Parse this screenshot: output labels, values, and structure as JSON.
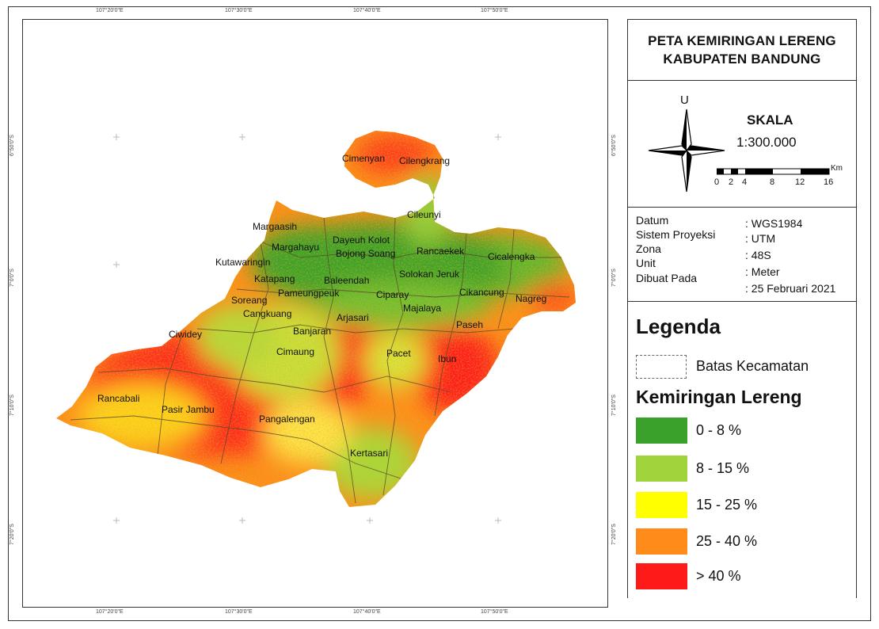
{
  "grid_labels": {
    "top": [
      "107°20'0\"E",
      "107°30'0\"E",
      "107°40'0\"E",
      "107°50'0\"E"
    ],
    "bottom": [
      "107°20'0\"E",
      "107°30'0\"E",
      "107°40'0\"E",
      "107°50'0\"E"
    ],
    "left": [
      "6°50'0\"S",
      "7°0'0\"S",
      "7°10'0\"S",
      "7°20'0\"S"
    ],
    "right": [
      "6°50'0\"S",
      "7°0'0\"S",
      "7°10'0\"S",
      "7°20'0\"S"
    ]
  },
  "districts": [
    "Cimenyan",
    "Cilengkrang",
    "Cileunyi",
    "Margaasih",
    "Margahayu",
    "Dayeuh Kolot",
    "Bojong Soang",
    "Rancaekek",
    "Cicalengka",
    "Kutawaringin",
    "Katapang",
    "Baleendah",
    "Solokan Jeruk",
    "Cikancung",
    "Nagreg",
    "Soreang",
    "Pameungpeuk",
    "Ciparay",
    "Majalaya",
    "Cangkuang",
    "Arjasari",
    "Paseh",
    "Ciwidey",
    "Banjaran",
    "Cimaung",
    "Pacet",
    "Ibun",
    "Rancabali",
    "Pasir Jambu",
    "Pangalengan",
    "Kertasari"
  ],
  "title": {
    "line1": "PETA KEMIRINGAN LERENG",
    "line2": "KABUPATEN BANDUNG"
  },
  "north": "U",
  "scale": {
    "heading": "SKALA",
    "ratio": "1:300.000",
    "unit": "Km",
    "ticks": [
      "0",
      "2",
      "4",
      "8",
      "12",
      "16"
    ]
  },
  "info": [
    {
      "label": "Datum",
      "value": ": WGS1984"
    },
    {
      "label": "Sistem Proyeksi",
      "value": ": UTM"
    },
    {
      "label": "Zona",
      "value": ": 48S"
    },
    {
      "label": "Unit",
      "value": ": Meter"
    },
    {
      "label": "Dibuat Pada",
      "value": ": 25 Februari 2021"
    }
  ],
  "legend": {
    "title": "Legenda",
    "boundary_label": "Batas Kecamatan",
    "slope_title": "Kemiringan Lereng",
    "classes": [
      {
        "label": "0 - 8 %",
        "color": "#3aa12b"
      },
      {
        "label": "8 - 15 %",
        "color": "#9fd53a"
      },
      {
        "label": "15 - 25 %",
        "color": "#ffff00"
      },
      {
        "label": "25 - 40 %",
        "color": "#ff8c1a"
      },
      {
        "label": "> 40 %",
        "color": "#ff1a1a"
      }
    ]
  }
}
